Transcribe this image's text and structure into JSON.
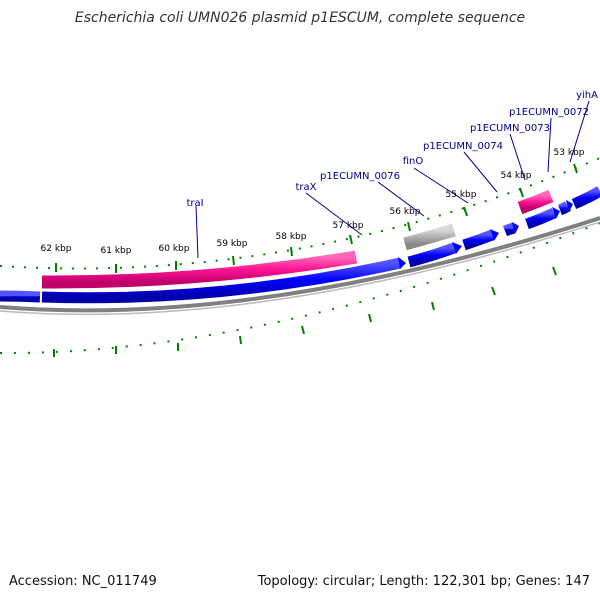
{
  "header": {
    "title": "Escherichia coli UMN026 plasmid p1ESCUM, complete sequence"
  },
  "footer": {
    "accession": "Accession: NC_011749",
    "summary": "Topology: circular; Length: 122,301 bp; Genes: 147"
  },
  "map": {
    "colors": {
      "forward_cds": "#ff1493",
      "reverse_cds": "#0000ff",
      "pseudo": "#b0b0b0",
      "other_feature": "#7fff00",
      "backbone": "#808080",
      "ticks": "#008000",
      "gene_label": "#00008b",
      "tick_label": "#000000"
    },
    "tick_labels": [
      "62 kbp",
      "61 kbp",
      "60 kbp",
      "59 kbp",
      "58 kbp",
      "57 kbp",
      "56 kbp",
      "55 kbp",
      "54 kbp",
      "53 kbp"
    ],
    "gene_labels": [
      "traI",
      "traX",
      "p1ECUMN_0076",
      "finO",
      "p1ECUMN_0074",
      "p1ECUMN_0073",
      "p1ECUMN_0072",
      "yihA"
    ]
  }
}
